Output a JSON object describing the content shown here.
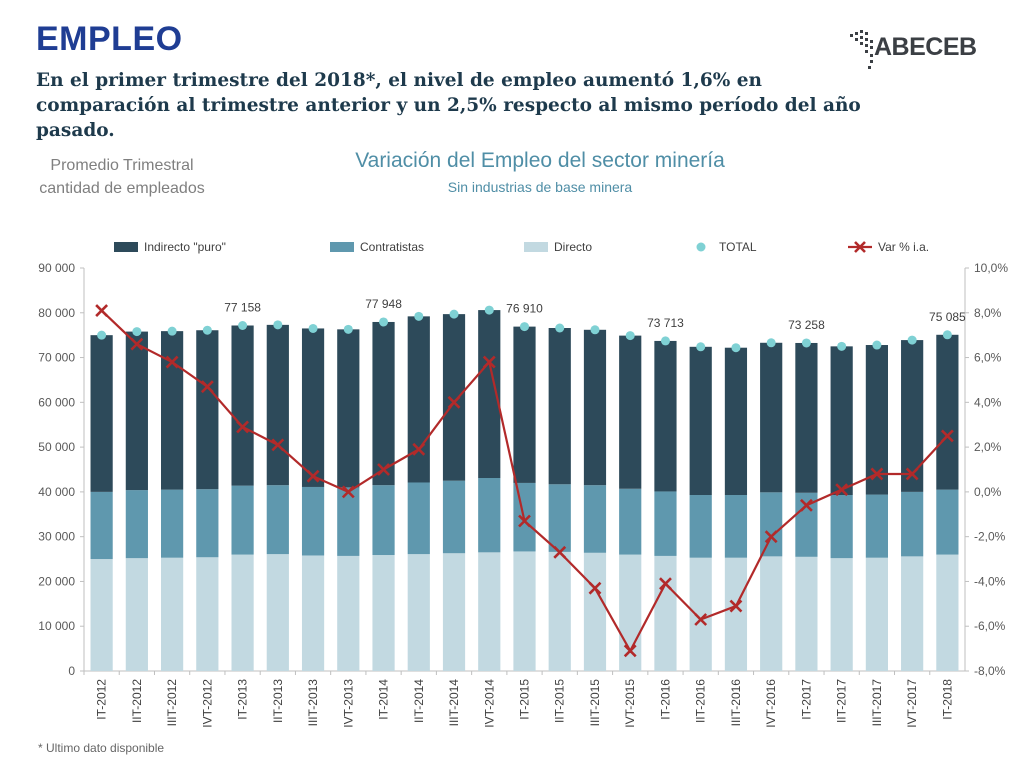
{
  "header": {
    "title": "EMPLEO",
    "subtitle": "En el primer trimestre del 2018*, el nivel de empleo aumentó 1,6% en comparación al trimestre anterior y un 2,5% respecto al mismo período del año pasado.",
    "logo_text": "ABECEB"
  },
  "side_note": {
    "line1": "Promedio Trimestral",
    "line2": "cantidad de empleados"
  },
  "footnote": "* Ultimo dato disponible",
  "colors": {
    "indirecto": "#2d4a5a",
    "contratistas": "#5f98ae",
    "directo": "#c2d9e1",
    "total": "#7fd1d4",
    "var": "#b22a2a"
  },
  "chart_data": {
    "type": "bar",
    "title": "Variación del Empleo del sector minería",
    "subtitle": "Sin industrias de base minera",
    "stacked": true,
    "categories": [
      "IT-2012",
      "IIT-2012",
      "IIIT-2012",
      "IVT-2012",
      "IT-2013",
      "IIT-2013",
      "IIIT-2013",
      "IVT-2013",
      "IT-2014",
      "IIT-2014",
      "IIIT-2014",
      "IVT-2014",
      "IT-2015",
      "IIT-2015",
      "IIIT-2015",
      "IVT-2015",
      "IT-2016",
      "IIT-2016",
      "IIIT-2016",
      "IVT-2016",
      "IT-2017",
      "IIT-2017",
      "IIIT-2017",
      "IVT-2017",
      "IT-2018"
    ],
    "series": [
      {
        "name": "Directo",
        "values": [
          25000,
          25200,
          25300,
          25400,
          26000,
          26100,
          25800,
          25700,
          25900,
          26100,
          26300,
          26500,
          26700,
          26600,
          26400,
          26000,
          25700,
          25300,
          25300,
          25600,
          25500,
          25200,
          25300,
          25600,
          26000
        ]
      },
      {
        "name": "Contratistas",
        "values": [
          15000,
          15200,
          15200,
          15200,
          15400,
          15400,
          15300,
          15300,
          15600,
          16000,
          16200,
          16600,
          15300,
          15100,
          15100,
          14700,
          14400,
          14000,
          14000,
          14300,
          14300,
          14100,
          14100,
          14400,
          14500
        ]
      },
      {
        "name": "Indirecto \"puro\"",
        "values": [
          35000,
          35400,
          35400,
          35500,
          35758,
          35800,
          35400,
          35300,
          36448,
          37100,
          37200,
          37500,
          34910,
          34900,
          34700,
          34200,
          33613,
          33100,
          32900,
          33400,
          33458,
          33200,
          33400,
          33900,
          34585
        ]
      }
    ],
    "total": {
      "name": "TOTAL",
      "values": [
        75000,
        75800,
        75900,
        76100,
        77158,
        77300,
        76500,
        76300,
        77948,
        79200,
        79700,
        80600,
        76910,
        76600,
        76200,
        74900,
        73713,
        72400,
        72200,
        73300,
        73258,
        72500,
        72800,
        73900,
        75085
      ]
    },
    "total_labels": [
      {
        "index": 4,
        "text": "77 158"
      },
      {
        "index": 8,
        "text": "77 948"
      },
      {
        "index": 12,
        "text": "76 910"
      },
      {
        "index": 16,
        "text": "73 713"
      },
      {
        "index": 20,
        "text": "73 258"
      },
      {
        "index": 24,
        "text": "75 085"
      }
    ],
    "var": {
      "name": "Var % i.a.",
      "values": [
        8.1,
        6.6,
        5.8,
        4.7,
        2.9,
        2.1,
        0.7,
        0.0,
        1.0,
        1.9,
        4.0,
        5.8,
        -1.3,
        -2.7,
        -4.3,
        -7.1,
        -4.1,
        -5.7,
        -5.1,
        -2.0,
        -0.6,
        0.1,
        0.8,
        0.8,
        2.5
      ]
    },
    "ylim": [
      0,
      90000
    ],
    "yticks": [
      0,
      10000,
      20000,
      30000,
      40000,
      50000,
      60000,
      70000,
      80000,
      90000
    ],
    "ytick_labels": [
      "0",
      "10 000",
      "20 000",
      "30 000",
      "40 000",
      "50 000",
      "60 000",
      "70 000",
      "80 000",
      "90 000"
    ],
    "y2lim": [
      -8,
      10
    ],
    "y2ticks": [
      -8,
      -6,
      -4,
      -2,
      0,
      2,
      4,
      6,
      8,
      10
    ],
    "y2tick_labels": [
      "-8,0%",
      "-6,0%",
      "-4,0%",
      "-2,0%",
      "0,0%",
      "2,0%",
      "4,0%",
      "6,0%",
      "8,0%",
      "10,0%"
    ],
    "legend": {
      "placement": "top",
      "items": [
        "Indirecto \"puro\"",
        "Contratistas",
        "Directo",
        "TOTAL",
        "Var % i.a."
      ]
    },
    "grid": false
  }
}
